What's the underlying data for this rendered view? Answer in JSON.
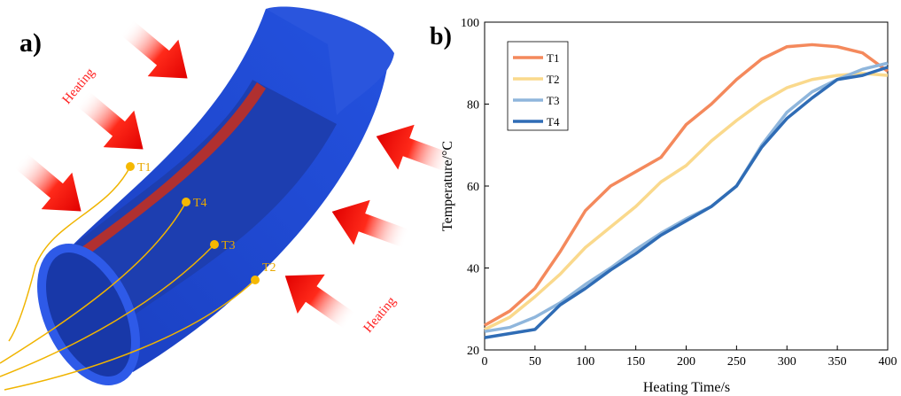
{
  "diagram": {
    "panel_label": "a)",
    "heating_labels": [
      "Heating",
      "Heating"
    ],
    "sensors": [
      "T1",
      "T4",
      "T3",
      "T2"
    ]
  },
  "chart_data": {
    "type": "line",
    "panel_label": "b)",
    "xlabel": "Heating Time/s",
    "ylabel": "Temperature/°C",
    "x": [
      0,
      25,
      50,
      75,
      100,
      125,
      150,
      175,
      200,
      225,
      250,
      275,
      300,
      325,
      350,
      375,
      400
    ],
    "series": [
      {
        "name": "T1",
        "color": "#f4895c",
        "values": [
          26,
          29.5,
          35,
          44,
          54,
          60,
          63.5,
          67,
          75,
          80,
          86,
          91,
          94,
          94.5,
          94,
          92.5,
          88
        ]
      },
      {
        "name": "T2",
        "color": "#fad98c",
        "values": [
          25,
          28,
          33,
          38.5,
          45,
          50,
          55,
          61,
          65,
          71,
          76,
          80.5,
          84,
          86,
          87,
          87.5,
          87
        ]
      },
      {
        "name": "T3",
        "color": "#8fb6dc",
        "values": [
          24.5,
          25.5,
          28,
          31.5,
          36,
          40,
          44.5,
          48.5,
          52,
          55,
          60,
          70,
          78,
          83,
          86,
          88.5,
          90
        ]
      },
      {
        "name": "T4",
        "color": "#2f6cb5",
        "values": [
          23,
          24,
          25,
          31,
          35,
          39.5,
          43.5,
          48,
          51.5,
          55,
          60,
          69.5,
          76.5,
          81.5,
          86,
          87,
          89
        ]
      }
    ],
    "xlim": [
      0,
      400
    ],
    "xticks": [
      0,
      50,
      100,
      150,
      200,
      250,
      300,
      350,
      400
    ],
    "ylim": [
      20,
      100
    ],
    "yticks": [
      20,
      40,
      60,
      80,
      100
    ],
    "legend": "upper left"
  }
}
